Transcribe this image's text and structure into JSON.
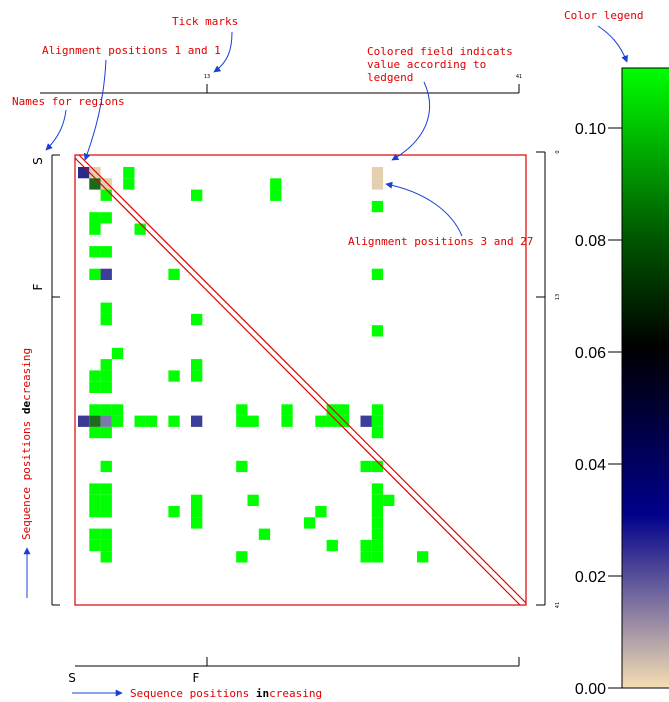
{
  "annotations": {
    "tick_marks": "Tick marks",
    "color_legend": "Color legend",
    "alignment_1_1": "Alignment positions 1 and 1",
    "colored_field_line1": "Colored field indicats",
    "colored_field_line2": "value according to",
    "colored_field_line3": "ledgend",
    "names_for_regions": "Names for regions",
    "alignment_3_27": "Alignment positions 3 and 27",
    "seq_decreasing_pre": "Sequence positions ",
    "seq_decreasing_bold": "de",
    "seq_decreasing_post": "creasing",
    "seq_increasing_pre": "Sequence positions ",
    "seq_increasing_bold": "in",
    "seq_increasing_post": "creasing"
  },
  "regions": {
    "x_labels": [
      "S",
      "F"
    ],
    "y_labels": [
      "S",
      "F"
    ]
  },
  "ticks": {
    "top": [
      "13",
      "41"
    ],
    "right": [
      "0",
      "13",
      "41"
    ]
  },
  "legend": {
    "ticks": [
      "0.10",
      "0.08",
      "0.06",
      "0.04",
      "0.02",
      "0.00"
    ],
    "colors": [
      "#f5deb3",
      "#00008b",
      "#000000",
      "#006400",
      "#00ff00"
    ]
  },
  "matrix": {
    "size": 41,
    "cells": [
      [
        1,
        1,
        "#2a2a8a"
      ],
      [
        2,
        1,
        "#e4cfae"
      ],
      [
        2,
        2,
        "#1a6a1a"
      ],
      [
        3,
        2,
        "#e4cfae"
      ],
      [
        5,
        1,
        "#00ff00"
      ],
      [
        5,
        2,
        "#00ff00"
      ],
      [
        3,
        3,
        "#00ff00"
      ],
      [
        11,
        3,
        "#00ff00"
      ],
      [
        18,
        2,
        "#00ff00"
      ],
      [
        18,
        3,
        "#00ff00"
      ],
      [
        27,
        1,
        "#e4cfae"
      ],
      [
        27,
        2,
        "#e4cfae"
      ],
      [
        27,
        4,
        "#00ff00"
      ],
      [
        2,
        5,
        "#00ff00"
      ],
      [
        3,
        5,
        "#00ff00"
      ],
      [
        2,
        6,
        "#00ff00"
      ],
      [
        6,
        6,
        "#00ff00"
      ],
      [
        2,
        8,
        "#00ff00"
      ],
      [
        3,
        8,
        "#00ff00"
      ],
      [
        2,
        10,
        "#00ff00"
      ],
      [
        3,
        10,
        "#3d3d9a"
      ],
      [
        9,
        10,
        "#00ff00"
      ],
      [
        27,
        10,
        "#00ff00"
      ],
      [
        3,
        13,
        "#00ff00"
      ],
      [
        3,
        14,
        "#00ff00"
      ],
      [
        11,
        14,
        "#00ff00"
      ],
      [
        27,
        15,
        "#00ff00"
      ],
      [
        4,
        17,
        "#00ff00"
      ],
      [
        3,
        18,
        "#00ff00"
      ],
      [
        2,
        19,
        "#00ff00"
      ],
      [
        3,
        19,
        "#00ff00"
      ],
      [
        9,
        19,
        "#00ff00"
      ],
      [
        11,
        18,
        "#00ff00"
      ],
      [
        11,
        19,
        "#00ff00"
      ],
      [
        2,
        20,
        "#00ff00"
      ],
      [
        3,
        20,
        "#00ff00"
      ],
      [
        2,
        22,
        "#00ff00"
      ],
      [
        3,
        22,
        "#00ff00"
      ],
      [
        4,
        22,
        "#00ff00"
      ],
      [
        15,
        22,
        "#00ff00"
      ],
      [
        19,
        22,
        "#00ff00"
      ],
      [
        27,
        22,
        "#00ff00"
      ],
      [
        23,
        22,
        "#00ff00"
      ],
      [
        24,
        22,
        "#00ff00"
      ],
      [
        1,
        23,
        "#3a3a95"
      ],
      [
        2,
        23,
        "#1e6a1e"
      ],
      [
        3,
        23,
        "#7a7aa8"
      ],
      [
        4,
        23,
        "#00ff00"
      ],
      [
        6,
        23,
        "#00ff00"
      ],
      [
        7,
        23,
        "#00ff00"
      ],
      [
        9,
        23,
        "#00ff00"
      ],
      [
        11,
        23,
        "#3d3d9a"
      ],
      [
        15,
        23,
        "#00ff00"
      ],
      [
        16,
        23,
        "#00ff00"
      ],
      [
        19,
        23,
        "#00ff00"
      ],
      [
        22,
        23,
        "#00ff00"
      ],
      [
        23,
        23,
        "#00ff00"
      ],
      [
        24,
        23,
        "#00ff00"
      ],
      [
        26,
        23,
        "#3d3d9a"
      ],
      [
        27,
        23,
        "#00ff00"
      ],
      [
        2,
        24,
        "#00ff00"
      ],
      [
        3,
        24,
        "#00ff00"
      ],
      [
        27,
        24,
        "#00ff00"
      ],
      [
        3,
        27,
        "#00ff00"
      ],
      [
        15,
        27,
        "#00ff00"
      ],
      [
        26,
        27,
        "#00ff00"
      ],
      [
        27,
        27,
        "#00ff00"
      ],
      [
        2,
        29,
        "#00ff00"
      ],
      [
        3,
        29,
        "#00ff00"
      ],
      [
        2,
        30,
        "#00ff00"
      ],
      [
        3,
        30,
        "#00ff00"
      ],
      [
        16,
        30,
        "#00ff00"
      ],
      [
        11,
        30,
        "#00ff00"
      ],
      [
        27,
        29,
        "#00ff00"
      ],
      [
        27,
        30,
        "#00ff00"
      ],
      [
        28,
        30,
        "#00ff00"
      ],
      [
        2,
        31,
        "#00ff00"
      ],
      [
        3,
        31,
        "#00ff00"
      ],
      [
        9,
        31,
        "#00ff00"
      ],
      [
        11,
        31,
        "#00ff00"
      ],
      [
        22,
        31,
        "#00ff00"
      ],
      [
        27,
        31,
        "#00ff00"
      ],
      [
        11,
        32,
        "#00ff00"
      ],
      [
        21,
        32,
        "#00ff00"
      ],
      [
        27,
        32,
        "#00ff00"
      ],
      [
        2,
        33,
        "#00ff00"
      ],
      [
        3,
        33,
        "#00ff00"
      ],
      [
        17,
        33,
        "#00ff00"
      ],
      [
        27,
        33,
        "#00ff00"
      ],
      [
        2,
        34,
        "#00ff00"
      ],
      [
        3,
        34,
        "#00ff00"
      ],
      [
        23,
        34,
        "#00ff00"
      ],
      [
        26,
        34,
        "#00ff00"
      ],
      [
        27,
        34,
        "#00ff00"
      ],
      [
        3,
        35,
        "#00ff00"
      ],
      [
        15,
        35,
        "#00ff00"
      ],
      [
        26,
        35,
        "#00ff00"
      ],
      [
        27,
        35,
        "#00ff00"
      ],
      [
        31,
        35,
        "#00ff00"
      ]
    ]
  }
}
